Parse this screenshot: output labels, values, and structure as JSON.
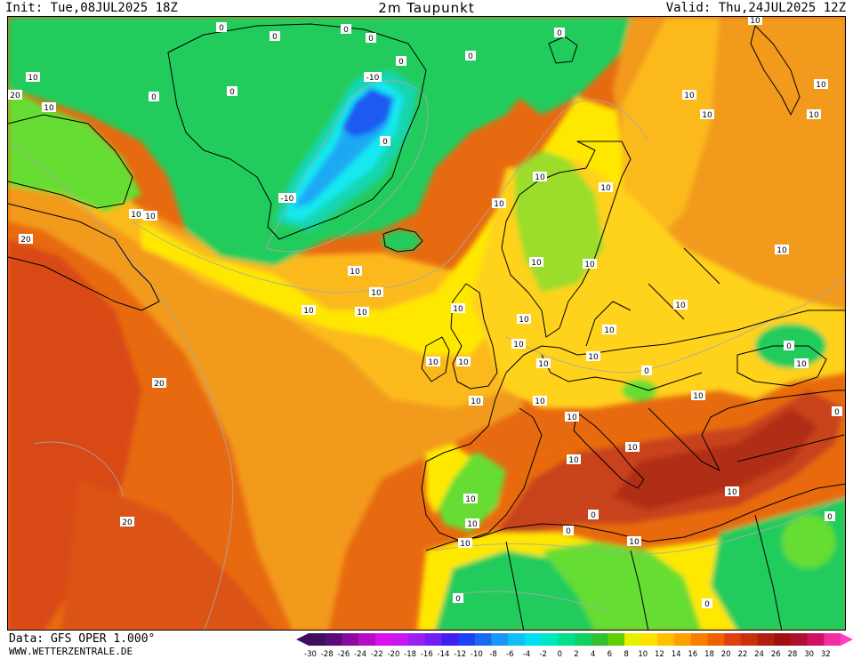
{
  "header": {
    "init": "Init: Tue,08JUL2025 18Z",
    "title": "2m Taupunkt",
    "valid": "Valid: Thu,24JUL2025 12Z"
  },
  "footer": {
    "data_source": "Data: GFS OPER 1.000°",
    "website": "WWW.WETTERZENTRALE.DE"
  },
  "legend": {
    "values": [
      -30,
      -28,
      -26,
      -24,
      -22,
      -20,
      -18,
      -16,
      -14,
      -12,
      -10,
      -8,
      -6,
      -4,
      -2,
      0,
      2,
      4,
      6,
      8,
      10,
      12,
      14,
      16,
      18,
      20,
      22,
      24,
      26,
      28,
      30,
      32
    ],
    "labels": [
      "-30",
      "-28",
      "-26",
      "-24",
      "-22",
      "-20",
      "-18",
      "-16",
      "-14",
      "-12",
      "-10",
      "-8",
      "-6",
      "-4",
      "-2",
      "0",
      "2",
      "4",
      "6",
      "8",
      "10",
      "12",
      "14",
      "16",
      "18",
      "20",
      "22",
      "24",
      "26",
      "28",
      "30",
      "32"
    ],
    "colors": [
      "#3d0f5c",
      "#5a0a7a",
      "#8a0aa0",
      "#b50cc4",
      "#dc10e8",
      "#c818f0",
      "#9a20f0",
      "#7020f0",
      "#4020f0",
      "#2040f5",
      "#1a6af0",
      "#1a96f5",
      "#10c0f5",
      "#00e0f0",
      "#00e8c0",
      "#00e08c",
      "#10d060",
      "#30c030",
      "#60d000",
      "#e8f000",
      "#ffe000",
      "#ffc000",
      "#ffa000",
      "#f88000",
      "#f06000",
      "#e04010",
      "#c83010",
      "#b02010",
      "#a01010",
      "#b01030",
      "#d01060",
      "#f030a0"
    ],
    "min_arrow_color": "#3d0f5c",
    "max_arrow_color": "#ff40c0"
  },
  "map_colors": {
    "ocean_warm": "#e86a10",
    "ocean_hot": "#d84a14",
    "mid_orange": "#f29a1c",
    "light_orange": "#fbb91c",
    "yellow": "#ffe800",
    "light_green": "#66dd33",
    "green": "#21cc5c",
    "teal": "#12d6b0",
    "cyan": "#18e8f0",
    "light_blue": "#1aa8f5",
    "blue": "#1a5af0",
    "mediterranean": "#c8431a",
    "mediterranean_deep": "#b02f14",
    "isoline": "#a8a8a8",
    "coast": "#000000"
  },
  "contour_labels": [
    {
      "text": "0"
    },
    {
      "text": "0"
    },
    {
      "text": "0"
    },
    {
      "text": "0"
    },
    {
      "text": "0"
    },
    {
      "text": "0"
    },
    {
      "text": "-10"
    },
    {
      "text": "0"
    },
    {
      "text": "0"
    },
    {
      "text": "-10"
    },
    {
      "text": "0"
    },
    {
      "text": "0"
    },
    {
      "text": "10"
    },
    {
      "text": "10"
    },
    {
      "text": "20"
    },
    {
      "text": "10"
    },
    {
      "text": "10"
    },
    {
      "text": "20"
    },
    {
      "text": "10"
    },
    {
      "text": "10"
    },
    {
      "text": "10"
    },
    {
      "text": "10"
    },
    {
      "text": "20"
    },
    {
      "text": "20"
    },
    {
      "text": "10"
    },
    {
      "text": "10"
    },
    {
      "text": "10"
    },
    {
      "text": "10"
    },
    {
      "text": "10"
    },
    {
      "text": "10"
    },
    {
      "text": "10"
    },
    {
      "text": "10"
    },
    {
      "text": "10"
    },
    {
      "text": "10"
    },
    {
      "text": "10"
    },
    {
      "text": "10"
    },
    {
      "text": "10"
    },
    {
      "text": "10"
    },
    {
      "text": "10"
    },
    {
      "text": "10"
    },
    {
      "text": "10"
    },
    {
      "text": "10"
    },
    {
      "text": "10"
    },
    {
      "text": "10"
    },
    {
      "text": "10"
    },
    {
      "text": "10"
    },
    {
      "text": "10"
    },
    {
      "text": "10"
    },
    {
      "text": "0"
    },
    {
      "text": "0"
    },
    {
      "text": "0"
    },
    {
      "text": "0"
    },
    {
      "text": "0"
    },
    {
      "text": "0"
    },
    {
      "text": "10"
    },
    {
      "text": "10"
    },
    {
      "text": "0"
    },
    {
      "text": "10"
    },
    {
      "text": "10"
    },
    {
      "text": "10"
    },
    {
      "text": "0"
    },
    {
      "text": "10"
    },
    {
      "text": "10"
    },
    {
      "text": "10"
    }
  ]
}
